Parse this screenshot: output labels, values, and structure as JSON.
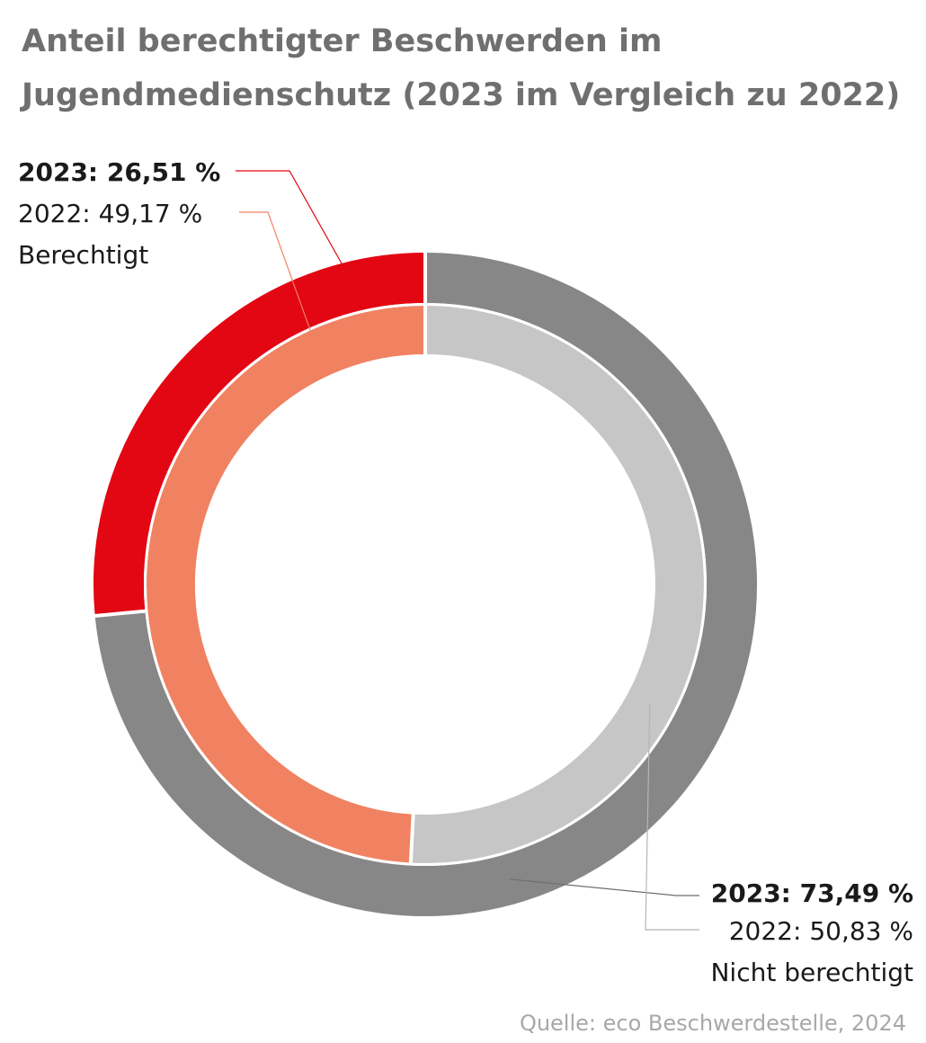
{
  "title_lines": [
    "Anteil berechtigter Beschwerden im",
    "Jugendmedienschutz (2023 im Vergleich zu 2022)"
  ],
  "source": "Quelle: eco Beschwerdestelle, 2024",
  "colors": {
    "berechtigt_2023": "#e30613",
    "nicht_berechtigt_2023": "#878787",
    "berechtigt_2022": "#f08262",
    "nicht_berechtigt_2022": "#c6c6c6",
    "title": "#6f6f6f"
  },
  "labels": {
    "berechtigt": {
      "line_2023": "2023: 26,51 %",
      "line_2022": "2022: 49,17 %",
      "category": "Berechtigt"
    },
    "nicht_berechtigt": {
      "line_2023": "2023: 73,49 %",
      "line_2022": "2022: 50,83 %",
      "category": "Nicht berechtigt"
    }
  },
  "chart_data": {
    "type": "pie",
    "categories": [
      "Berechtigt",
      "Nicht berechtigt"
    ],
    "series": [
      {
        "name": "2023",
        "values": [
          26.51,
          73.49
        ]
      },
      {
        "name": "2022",
        "values": [
          49.17,
          50.83
        ]
      }
    ]
  }
}
